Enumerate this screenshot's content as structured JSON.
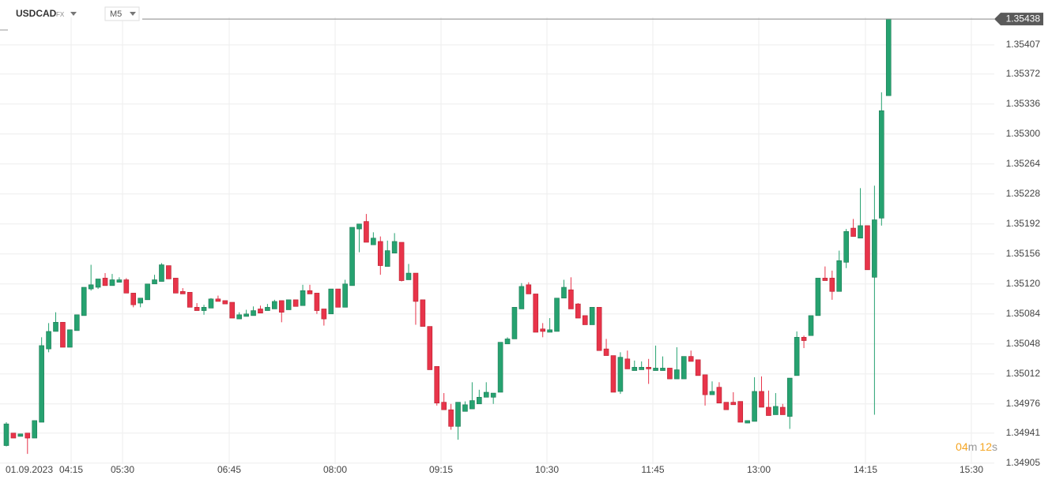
{
  "header": {
    "symbol": "USDCAD",
    "market": "FX",
    "interval": "M5"
  },
  "countdown": [
    "04",
    "m",
    "12",
    "s"
  ],
  "chart_data": {
    "type": "candlestick",
    "up_color": "#26a270",
    "down_color": "#e8344a",
    "current_price": 1.35438,
    "ylim": [
      1.349,
      1.3544
    ],
    "yticks": [
      1.35407,
      1.35372,
      1.35336,
      {
        "value": 1.353,
        "label": "1.35300"
      },
      1.35264,
      1.35228,
      1.35192,
      1.35156,
      {
        "value": 1.3512,
        "label": "1.35120"
      },
      1.35084,
      1.35048,
      1.35012,
      1.34976,
      1.34941,
      1.34905
    ],
    "xticks": [
      "01.09.2023",
      "04:15",
      "05:30",
      "06:45",
      "08:00",
      "09:15",
      "10:30",
      "11:45",
      "13:00",
      "14:15",
      "15:30"
    ],
    "grid": true,
    "ohlc": [
      [
        1.34926,
        1.34954,
        1.34925,
        1.34952
      ],
      [
        1.34941,
        1.34941,
        1.34935,
        1.34935
      ],
      [
        1.34937,
        1.3494,
        1.34937,
        1.3494
      ],
      [
        1.34941,
        1.34941,
        1.34916,
        1.34935
      ],
      [
        1.34935,
        1.34956,
        1.34935,
        1.34956
      ],
      [
        1.34954,
        1.35056,
        1.34954,
        1.35046
      ],
      [
        1.35042,
        1.35073,
        1.35038,
        1.35063
      ],
      [
        1.35063,
        1.35086,
        1.35063,
        1.35074
      ],
      [
        1.35074,
        1.35074,
        1.35044,
        1.35044
      ],
      [
        1.35044,
        1.35065,
        1.35044,
        1.35065
      ],
      [
        1.35064,
        1.35083,
        1.35064,
        1.35083
      ],
      [
        1.35082,
        1.35116,
        1.35082,
        1.35116
      ],
      [
        1.35114,
        1.35143,
        1.35112,
        1.35119
      ],
      [
        1.35116,
        1.35126,
        1.35114,
        1.35126
      ],
      [
        1.35127,
        1.35133,
        1.35118,
        1.35118
      ],
      [
        1.35118,
        1.35132,
        1.35118,
        1.35125
      ],
      [
        1.35122,
        1.35128,
        1.35122,
        1.35125
      ],
      [
        1.35125,
        1.35127,
        1.35109,
        1.35109
      ],
      [
        1.35109,
        1.35109,
        1.35092,
        1.35095
      ],
      [
        1.35097,
        1.35103,
        1.35092,
        1.35103
      ],
      [
        1.35101,
        1.3512,
        1.35101,
        1.3512
      ],
      [
        1.3512,
        1.35131,
        1.3512,
        1.35125
      ],
      [
        1.35123,
        1.35145,
        1.35123,
        1.35143
      ],
      [
        1.35142,
        1.35142,
        1.35126,
        1.35126
      ],
      [
        1.35127,
        1.35127,
        1.35109,
        1.35109
      ],
      [
        1.35111,
        1.35115,
        1.35108,
        1.35108
      ],
      [
        1.3511,
        1.3511,
        1.35092,
        1.35092
      ],
      [
        1.35092,
        1.35097,
        1.35088,
        1.35088
      ],
      [
        1.35088,
        1.35095,
        1.35083,
        1.35092
      ],
      [
        1.35091,
        1.35103,
        1.35091,
        1.35102
      ],
      [
        1.35102,
        1.35106,
        1.35099,
        1.35099
      ],
      [
        1.351,
        1.351,
        1.35096,
        1.35096
      ],
      [
        1.35098,
        1.35098,
        1.35079,
        1.35079
      ],
      [
        1.35078,
        1.35086,
        1.35078,
        1.35083
      ],
      [
        1.35081,
        1.35089,
        1.35081,
        1.35084
      ],
      [
        1.35082,
        1.35093,
        1.35082,
        1.35088
      ],
      [
        1.3509,
        1.35094,
        1.35085,
        1.35085
      ],
      [
        1.35088,
        1.35096,
        1.35088,
        1.35092
      ],
      [
        1.3509,
        1.35101,
        1.3509,
        1.35099
      ],
      [
        1.351,
        1.351,
        1.35074,
        1.35086
      ],
      [
        1.35089,
        1.35101,
        1.35089,
        1.35101
      ],
      [
        1.35101,
        1.35101,
        1.35093,
        1.35093
      ],
      [
        1.35094,
        1.35119,
        1.35094,
        1.35112
      ],
      [
        1.35112,
        1.35119,
        1.35108,
        1.35108
      ],
      [
        1.35109,
        1.35109,
        1.35084,
        1.35088
      ],
      [
        1.3509,
        1.3509,
        1.3507,
        1.35078
      ],
      [
        1.35084,
        1.35114,
        1.35084,
        1.35114
      ],
      [
        1.35114,
        1.35114,
        1.35092,
        1.35092
      ],
      [
        1.35092,
        1.35125,
        1.35092,
        1.3512
      ],
      [
        1.35118,
        1.35188,
        1.35118,
        1.35188
      ],
      [
        1.35186,
        1.35192,
        1.35158,
        1.35192
      ],
      [
        1.35195,
        1.35204,
        1.3517,
        1.3517
      ],
      [
        1.35167,
        1.35182,
        1.35167,
        1.35175
      ],
      [
        1.35171,
        1.35177,
        1.35131,
        1.35142
      ],
      [
        1.35141,
        1.35172,
        1.35141,
        1.3516
      ],
      [
        1.35157,
        1.35181,
        1.35157,
        1.35171
      ],
      [
        1.3517,
        1.3517,
        1.35123,
        1.35124
      ],
      [
        1.35125,
        1.35144,
        1.35125,
        1.35133
      ],
      [
        1.35133,
        1.35133,
        1.35071,
        1.35099
      ],
      [
        1.35101,
        1.35101,
        1.35069,
        1.35069
      ],
      [
        1.35069,
        1.35069,
        1.35017,
        1.35017
      ],
      [
        1.35021,
        1.35021,
        1.34974,
        1.34977
      ],
      [
        1.34978,
        1.34989,
        1.34969,
        1.34969
      ],
      [
        1.34969,
        1.34976,
        1.34945,
        1.34949
      ],
      [
        1.34949,
        1.34978,
        1.34933,
        1.34978
      ],
      [
        1.34967,
        1.34979,
        1.34967,
        1.34975
      ],
      [
        1.3497,
        1.35002,
        1.3497,
        1.3498
      ],
      [
        1.34976,
        1.34993,
        1.34976,
        1.34984
      ],
      [
        1.34984,
        1.35002,
        1.34984,
        1.3499
      ],
      [
        1.34984,
        1.34989,
        1.34976,
        1.34989
      ],
      [
        1.3499,
        1.3505,
        1.3499,
        1.3505
      ],
      [
        1.35048,
        1.35056,
        1.35048,
        1.35054
      ],
      [
        1.35054,
        1.35092,
        1.35054,
        1.35092
      ],
      [
        1.3509,
        1.35121,
        1.3509,
        1.35117
      ],
      [
        1.35119,
        1.35122,
        1.35108,
        1.35108
      ],
      [
        1.35108,
        1.35108,
        1.35062,
        1.35062
      ],
      [
        1.35066,
        1.35073,
        1.35056,
        1.35063
      ],
      [
        1.35062,
        1.35079,
        1.35062,
        1.35065
      ],
      [
        1.35063,
        1.35103,
        1.35063,
        1.35103
      ],
      [
        1.35103,
        1.35125,
        1.35103,
        1.35116
      ],
      [
        1.35113,
        1.35128,
        1.3509,
        1.3509
      ],
      [
        1.35096,
        1.35097,
        1.35079,
        1.35079
      ],
      [
        1.35082,
        1.35082,
        1.35071,
        1.35071
      ],
      [
        1.35071,
        1.35092,
        1.35071,
        1.35092
      ],
      [
        1.35092,
        1.35092,
        1.3504,
        1.3504
      ],
      [
        1.35042,
        1.35054,
        1.35034,
        1.35034
      ],
      [
        1.35034,
        1.35034,
        1.3499,
        1.3499
      ],
      [
        1.34991,
        1.35038,
        1.34988,
        1.35032
      ],
      [
        1.3503,
        1.3504,
        1.35018,
        1.35018
      ],
      [
        1.35016,
        1.35028,
        1.35016,
        1.3502
      ],
      [
        1.35017,
        1.35027,
        1.35017,
        1.3502
      ],
      [
        1.3502,
        1.3503,
        1.35,
        1.35018
      ],
      [
        1.35016,
        1.35046,
        1.35016,
        1.35019
      ],
      [
        1.35016,
        1.35033,
        1.35016,
        1.35019
      ],
      [
        1.35019,
        1.35019,
        1.35006,
        1.35006
      ],
      [
        1.35006,
        1.35044,
        1.35006,
        1.35017
      ],
      [
        1.35006,
        1.35033,
        1.35006,
        1.35033
      ],
      [
        1.35033,
        1.3504,
        1.35027,
        1.35027
      ],
      [
        1.35029,
        1.35029,
        1.3501,
        1.3501
      ],
      [
        1.35011,
        1.35011,
        1.34974,
        1.34987
      ],
      [
        1.34987,
        1.35003,
        1.34987,
        1.34991
      ],
      [
        1.34996,
        1.35002,
        1.34977,
        1.34977
      ],
      [
        1.34978,
        1.34978,
        1.34969,
        1.34969
      ],
      [
        1.34978,
        1.3499,
        1.34975,
        1.34975
      ],
      [
        1.34979,
        1.34979,
        1.34954,
        1.34954
      ],
      [
        1.34953,
        1.34956,
        1.34953,
        1.34956
      ],
      [
        1.34955,
        1.35008,
        1.34955,
        1.34991
      ],
      [
        1.34991,
        1.35009,
        1.34972,
        1.34972
      ],
      [
        1.34972,
        1.34992,
        1.34962,
        1.34962
      ],
      [
        1.34963,
        1.34989,
        1.34963,
        1.34973
      ],
      [
        1.34972,
        1.34976,
        1.34963,
        1.34963
      ],
      [
        1.34961,
        1.35007,
        1.34946,
        1.35007
      ],
      [
        1.3501,
        1.35063,
        1.3501,
        1.35056
      ],
      [
        1.35056,
        1.35058,
        1.35043,
        1.35052
      ],
      [
        1.35058,
        1.35082,
        1.35058,
        1.35082
      ],
      [
        1.35082,
        1.35127,
        1.35082,
        1.35127
      ],
      [
        1.35127,
        1.35141,
        1.35124,
        1.35124
      ],
      [
        1.35127,
        1.35136,
        1.35101,
        1.35111
      ],
      [
        1.35111,
        1.3516,
        1.35111,
        1.35148
      ],
      [
        1.35146,
        1.35186,
        1.35139,
        1.35183
      ],
      [
        1.35187,
        1.35198,
        1.35177,
        1.35177
      ],
      [
        1.35175,
        1.35235,
        1.35175,
        1.3519
      ],
      [
        1.3519,
        1.3519,
        1.35137,
        1.35137
      ],
      [
        1.35128,
        1.35238,
        1.34963,
        1.35197
      ],
      [
        1.35199,
        1.3535,
        1.3519,
        1.35328
      ],
      [
        1.35346,
        1.35438,
        1.35346,
        1.35438
      ]
    ]
  }
}
